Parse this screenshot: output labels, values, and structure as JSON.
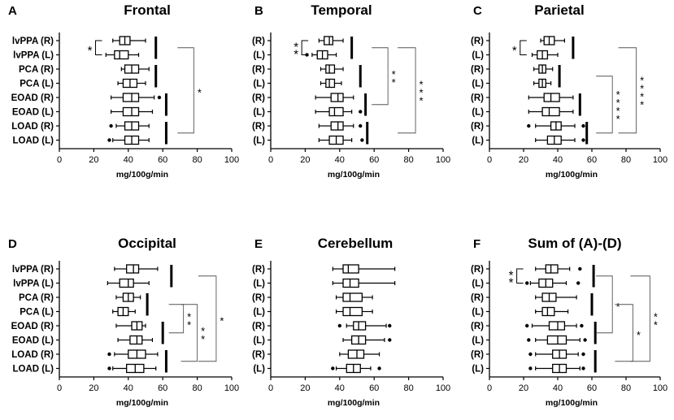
{
  "chart_data": [
    {
      "type": "boxplot",
      "letter": "A",
      "title": "Frontal",
      "xlabel": "mg/100g/min",
      "xlim": [
        0,
        100
      ],
      "xticks": [
        0,
        20,
        40,
        60,
        80,
        100
      ],
      "categories": [
        "lvPPA (R)",
        "lvPPA (L)",
        "PCA (R)",
        "PCA (L)",
        "EOAD (R)",
        "EOAD (L)",
        "LOAD (R)",
        "LOAD (L)"
      ],
      "boxes": [
        {
          "min": 31,
          "q1": 35,
          "median": 38,
          "q3": 41,
          "max": 50,
          "outliers": []
        },
        {
          "min": 27,
          "q1": 32,
          "median": 35,
          "q3": 40,
          "max": 46,
          "outliers": []
        },
        {
          "min": 36,
          "q1": 38,
          "median": 42,
          "q3": 46,
          "max": 52,
          "outliers": []
        },
        {
          "min": 34,
          "q1": 37,
          "median": 41,
          "q3": 45,
          "max": 50,
          "outliers": []
        },
        {
          "min": 30,
          "q1": 37,
          "median": 42,
          "q3": 46,
          "max": 55,
          "outliers": [
            58
          ]
        },
        {
          "min": 30,
          "q1": 37,
          "median": 42,
          "q3": 46,
          "max": 54,
          "outliers": []
        },
        {
          "min": 33,
          "q1": 38,
          "median": 42,
          "q3": 46,
          "max": 52,
          "outliers": [
            30
          ]
        },
        {
          "min": 31,
          "q1": 38,
          "median": 42,
          "q3": 46,
          "max": 52,
          "outliers": [
            29
          ]
        }
      ],
      "group_bars": [
        {
          "from": 0,
          "to": 1,
          "x": 56
        },
        {
          "from": 2,
          "to": 3,
          "x": 56
        },
        {
          "from": 4,
          "to": 5,
          "x": 62
        },
        {
          "from": 6,
          "to": 7,
          "x": 62
        }
      ],
      "brackets": [
        {
          "from": 0,
          "to": 1,
          "x": 21,
          "label": "*",
          "kind": "within"
        },
        {
          "from": 0.5,
          "to": 6.5,
          "x": 78,
          "label": "*",
          "kind": "between"
        }
      ]
    },
    {
      "type": "boxplot",
      "letter": "B",
      "title": "Temporal",
      "xlabel": "mg/100g/min",
      "xlim": [
        0,
        100
      ],
      "xticks": [
        0,
        20,
        40,
        60,
        80,
        100
      ],
      "categories": [
        "(R)",
        "(L)",
        "(R)",
        "(L)",
        "(R)",
        "(L)",
        "(R)",
        "(L)"
      ],
      "boxes": [
        {
          "min": 28,
          "q1": 31,
          "median": 34,
          "q3": 36,
          "max": 42,
          "outliers": []
        },
        {
          "min": 24,
          "q1": 27,
          "median": 30,
          "q3": 33,
          "max": 38,
          "outliers": [
            21
          ]
        },
        {
          "min": 29,
          "q1": 32,
          "median": 34,
          "q3": 37,
          "max": 42,
          "outliers": []
        },
        {
          "min": 29,
          "q1": 32,
          "median": 34,
          "q3": 37,
          "max": 41,
          "outliers": []
        },
        {
          "min": 26,
          "q1": 35,
          "median": 39,
          "q3": 42,
          "max": 48,
          "outliers": []
        },
        {
          "min": 26,
          "q1": 34,
          "median": 37,
          "q3": 42,
          "max": 47,
          "outliers": [
            52
          ]
        },
        {
          "min": 28,
          "q1": 35,
          "median": 39,
          "q3": 42,
          "max": 48,
          "outliers": [
            52
          ]
        },
        {
          "min": 28,
          "q1": 34,
          "median": 38,
          "q3": 42,
          "max": 47,
          "outliers": [
            53
          ]
        }
      ],
      "group_bars": [
        {
          "from": 0,
          "to": 1,
          "x": 47
        },
        {
          "from": 2,
          "to": 3,
          "x": 52
        },
        {
          "from": 4,
          "to": 5,
          "x": 55
        },
        {
          "from": 6,
          "to": 7,
          "x": 56
        }
      ],
      "brackets": [
        {
          "from": 0,
          "to": 1,
          "x": 18,
          "label": "**",
          "kind": "within"
        },
        {
          "from": 0.5,
          "to": 4.5,
          "x": 68,
          "label": "**",
          "kind": "between"
        },
        {
          "from": 0.5,
          "to": 6.5,
          "x": 84,
          "label": "***",
          "kind": "between"
        }
      ]
    },
    {
      "type": "boxplot",
      "letter": "C",
      "title": "Parietal",
      "xlabel": "mg/100g/min",
      "xlim": [
        0,
        100
      ],
      "xticks": [
        0,
        20,
        40,
        60,
        80,
        100
      ],
      "categories": [
        "(R)",
        "(L)",
        "(R)",
        "(L)",
        "(R)",
        "(L)",
        "(R)",
        "(L)"
      ],
      "boxes": [
        {
          "min": 30,
          "q1": 32,
          "median": 35,
          "q3": 38,
          "max": 44,
          "outliers": []
        },
        {
          "min": 25,
          "q1": 28,
          "median": 31,
          "q3": 34,
          "max": 40,
          "outliers": []
        },
        {
          "min": 26,
          "q1": 29,
          "median": 31,
          "q3": 33,
          "max": 37,
          "outliers": []
        },
        {
          "min": 26,
          "q1": 29,
          "median": 31,
          "q3": 33,
          "max": 36,
          "outliers": []
        },
        {
          "min": 23,
          "q1": 32,
          "median": 36,
          "q3": 41,
          "max": 49,
          "outliers": []
        },
        {
          "min": 23,
          "q1": 31,
          "median": 35,
          "q3": 41,
          "max": 49,
          "outliers": []
        },
        {
          "min": 27,
          "q1": 36,
          "median": 39,
          "q3": 42,
          "max": 50,
          "outliers": [
            23,
            55
          ]
        },
        {
          "min": 27,
          "q1": 34,
          "median": 38,
          "q3": 42,
          "max": 50,
          "outliers": [
            55
          ]
        }
      ],
      "group_bars": [
        {
          "from": 0,
          "to": 1,
          "x": 49
        },
        {
          "from": 2,
          "to": 3,
          "x": 41
        },
        {
          "from": 4,
          "to": 5,
          "x": 53
        },
        {
          "from": 6,
          "to": 7,
          "x": 57
        }
      ],
      "brackets": [
        {
          "from": 0,
          "to": 1,
          "x": 18,
          "label": "*",
          "kind": "within"
        },
        {
          "from": 2.5,
          "to": 6.5,
          "x": 72,
          "label": "****",
          "kind": "between"
        },
        {
          "from": 0.5,
          "to": 6.5,
          "x": 86,
          "label": "****",
          "kind": "between"
        }
      ]
    },
    {
      "type": "boxplot",
      "letter": "D",
      "title": "Occipital",
      "xlabel": "mg/100g/min",
      "xlim": [
        0,
        100
      ],
      "xticks": [
        0,
        20,
        40,
        60,
        80,
        100
      ],
      "categories": [
        "lvPPA (R)",
        "lvPPA (L)",
        "PCA (R)",
        "PCA (L)",
        "EOAD (R)",
        "EOAD (L)",
        "LOAD (R)",
        "LOAD (L)"
      ],
      "boxes": [
        {
          "min": 32,
          "q1": 39,
          "median": 43,
          "q3": 46,
          "max": 57,
          "outliers": []
        },
        {
          "min": 28,
          "q1": 35,
          "median": 40,
          "q3": 43,
          "max": 52,
          "outliers": []
        },
        {
          "min": 33,
          "q1": 37,
          "median": 40,
          "q3": 43,
          "max": 47,
          "outliers": []
        },
        {
          "min": 31,
          "q1": 34,
          "median": 37,
          "q3": 40,
          "max": 44,
          "outliers": []
        },
        {
          "min": 33,
          "q1": 42,
          "median": 45,
          "q3": 48,
          "max": 50,
          "outliers": []
        },
        {
          "min": 34,
          "q1": 41,
          "median": 45,
          "q3": 48,
          "max": 54,
          "outliers": []
        },
        {
          "min": 32,
          "q1": 40,
          "median": 45,
          "q3": 50,
          "max": 57,
          "outliers": [
            29
          ]
        },
        {
          "min": 31,
          "q1": 39,
          "median": 44,
          "q3": 49,
          "max": 56,
          "outliers": [
            29
          ]
        }
      ],
      "group_bars": [
        {
          "from": 0,
          "to": 1,
          "x": 65
        },
        {
          "from": 2,
          "to": 3,
          "x": 51
        },
        {
          "from": 4,
          "to": 5,
          "x": 60
        },
        {
          "from": 6,
          "to": 7,
          "x": 62
        }
      ],
      "brackets": [
        {
          "from": 2.5,
          "to": 4.5,
          "x": 72,
          "label": "**",
          "kind": "between"
        },
        {
          "from": 2.5,
          "to": 6.5,
          "x": 80,
          "label": "**",
          "kind": "between"
        },
        {
          "from": 0.5,
          "to": 6.5,
          "x": 91,
          "label": "*",
          "kind": "between"
        }
      ]
    },
    {
      "type": "boxplot",
      "letter": "E",
      "title": "Cerebellum",
      "xlabel": "mg/100g/min",
      "xlim": [
        0,
        100
      ],
      "xticks": [
        0,
        20,
        40,
        60,
        80,
        100
      ],
      "categories": [
        "(R)",
        "(L)",
        "(R)",
        "(L)",
        "(R)",
        "(L)",
        "(R)",
        "(L)"
      ],
      "boxes": [
        {
          "min": 36,
          "q1": 42,
          "median": 45,
          "q3": 51,
          "max": 72,
          "outliers": []
        },
        {
          "min": 36,
          "q1": 42,
          "median": 46,
          "q3": 51,
          "max": 72,
          "outliers": []
        },
        {
          "min": 38,
          "q1": 42,
          "median": 46,
          "q3": 53,
          "max": 59,
          "outliers": []
        },
        {
          "min": 38,
          "q1": 42,
          "median": 46,
          "q3": 53,
          "max": 59,
          "outliers": []
        },
        {
          "min": 44,
          "q1": 48,
          "median": 51,
          "q3": 55,
          "max": 67,
          "outliers": [
            40,
            69
          ]
        },
        {
          "min": 42,
          "q1": 47,
          "median": 51,
          "q3": 55,
          "max": 66,
          "outliers": [
            69
          ]
        },
        {
          "min": 40,
          "q1": 45,
          "median": 50,
          "q3": 54,
          "max": 63,
          "outliers": []
        },
        {
          "min": 38,
          "q1": 44,
          "median": 48,
          "q3": 52,
          "max": 58,
          "outliers": [
            36,
            63
          ]
        }
      ],
      "group_bars": [],
      "brackets": []
    },
    {
      "type": "boxplot",
      "letter": "F",
      "title": "Sum of (A)-(D)",
      "xlabel": "mg/100g/min",
      "xlim": [
        0,
        100
      ],
      "xticks": [
        0,
        20,
        40,
        60,
        80,
        100
      ],
      "categories": [
        "(R)",
        "(L)",
        "(R)",
        "(L)",
        "(R)",
        "(L)",
        "(R)",
        "(L)"
      ],
      "boxes": [
        {
          "min": 27,
          "q1": 33,
          "median": 36,
          "q3": 40,
          "max": 47,
          "outliers": [
            53
          ]
        },
        {
          "min": 24,
          "q1": 29,
          "median": 33,
          "q3": 37,
          "max": 45,
          "outliers": [
            22,
            52
          ]
        },
        {
          "min": 27,
          "q1": 31,
          "median": 35,
          "q3": 39,
          "max": 51,
          "outliers": []
        },
        {
          "min": 27,
          "q1": 31,
          "median": 34,
          "q3": 38,
          "max": 46,
          "outliers": []
        },
        {
          "min": 25,
          "q1": 35,
          "median": 40,
          "q3": 44,
          "max": 51,
          "outliers": [
            22,
            54
          ]
        },
        {
          "min": 27,
          "q1": 34,
          "median": 40,
          "q3": 45,
          "max": 53,
          "outliers": [
            23,
            56
          ]
        },
        {
          "min": 27,
          "q1": 37,
          "median": 41,
          "q3": 45,
          "max": 52,
          "outliers": [
            24,
            55
          ]
        },
        {
          "min": 27,
          "q1": 37,
          "median": 41,
          "q3": 45,
          "max": 53,
          "outliers": [
            24,
            55
          ]
        }
      ],
      "group_bars": [
        {
          "from": 0,
          "to": 1,
          "x": 61
        },
        {
          "from": 2,
          "to": 3,
          "x": 60
        },
        {
          "from": 4,
          "to": 5,
          "x": 62
        },
        {
          "from": 6,
          "to": 7,
          "x": 62
        }
      ],
      "brackets": [
        {
          "from": 0,
          "to": 1,
          "x": 16,
          "label": "**",
          "kind": "within"
        },
        {
          "from": 0.5,
          "to": 4.5,
          "x": 72,
          "label": "*",
          "kind": "between"
        },
        {
          "from": 2.5,
          "to": 6.5,
          "x": 84,
          "label": "*",
          "kind": "between"
        },
        {
          "from": 0.5,
          "to": 6.5,
          "x": 94,
          "label": "**",
          "kind": "between"
        }
      ]
    }
  ]
}
